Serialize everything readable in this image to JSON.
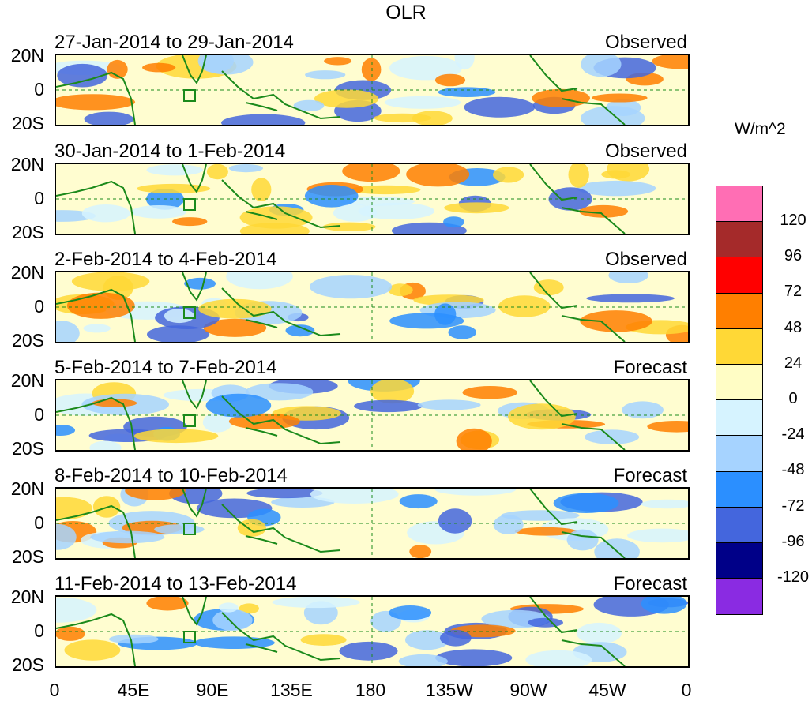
{
  "title": "OLR",
  "unit": "W/m^2",
  "y_labels": [
    "20N",
    "0",
    "20S"
  ],
  "x_labels": [
    "0",
    "45E",
    "90E",
    "135E",
    "180",
    "135W",
    "90W",
    "45W",
    "0"
  ],
  "panels": [
    {
      "period": "27-Jan-2014 to 29-Jan-2014",
      "status": "Observed"
    },
    {
      "period": "30-Jan-2014 to 1-Feb-2014",
      "status": "Observed"
    },
    {
      "period": "2-Feb-2014 to 4-Feb-2014",
      "status": "Observed"
    },
    {
      "period": "5-Feb-2014 to 7-Feb-2014",
      "status": "Forecast"
    },
    {
      "period": "8-Feb-2014 to 10-Feb-2014",
      "status": "Forecast"
    },
    {
      "period": "11-Feb-2014 to 13-Feb-2014",
      "status": "Forecast"
    }
  ],
  "colorbar": {
    "colors": [
      "#ff6eb4",
      "#a52a2a",
      "#ff0000",
      "#ff7f00",
      "#ffd836",
      "#fffdc5",
      "#d6f3ff",
      "#a6d3ff",
      "#2b8fff",
      "#4466dd",
      "#000088",
      "#8a2be2"
    ],
    "labels": [
      "120",
      "96",
      "72",
      "48",
      "24",
      "0",
      "-24",
      "-48",
      "-72",
      "-96",
      "-120"
    ]
  },
  "colors": {
    "background_field": "#fffdd0",
    "coastline": "#1b8a1b",
    "grid": "#1b8a1b"
  }
}
